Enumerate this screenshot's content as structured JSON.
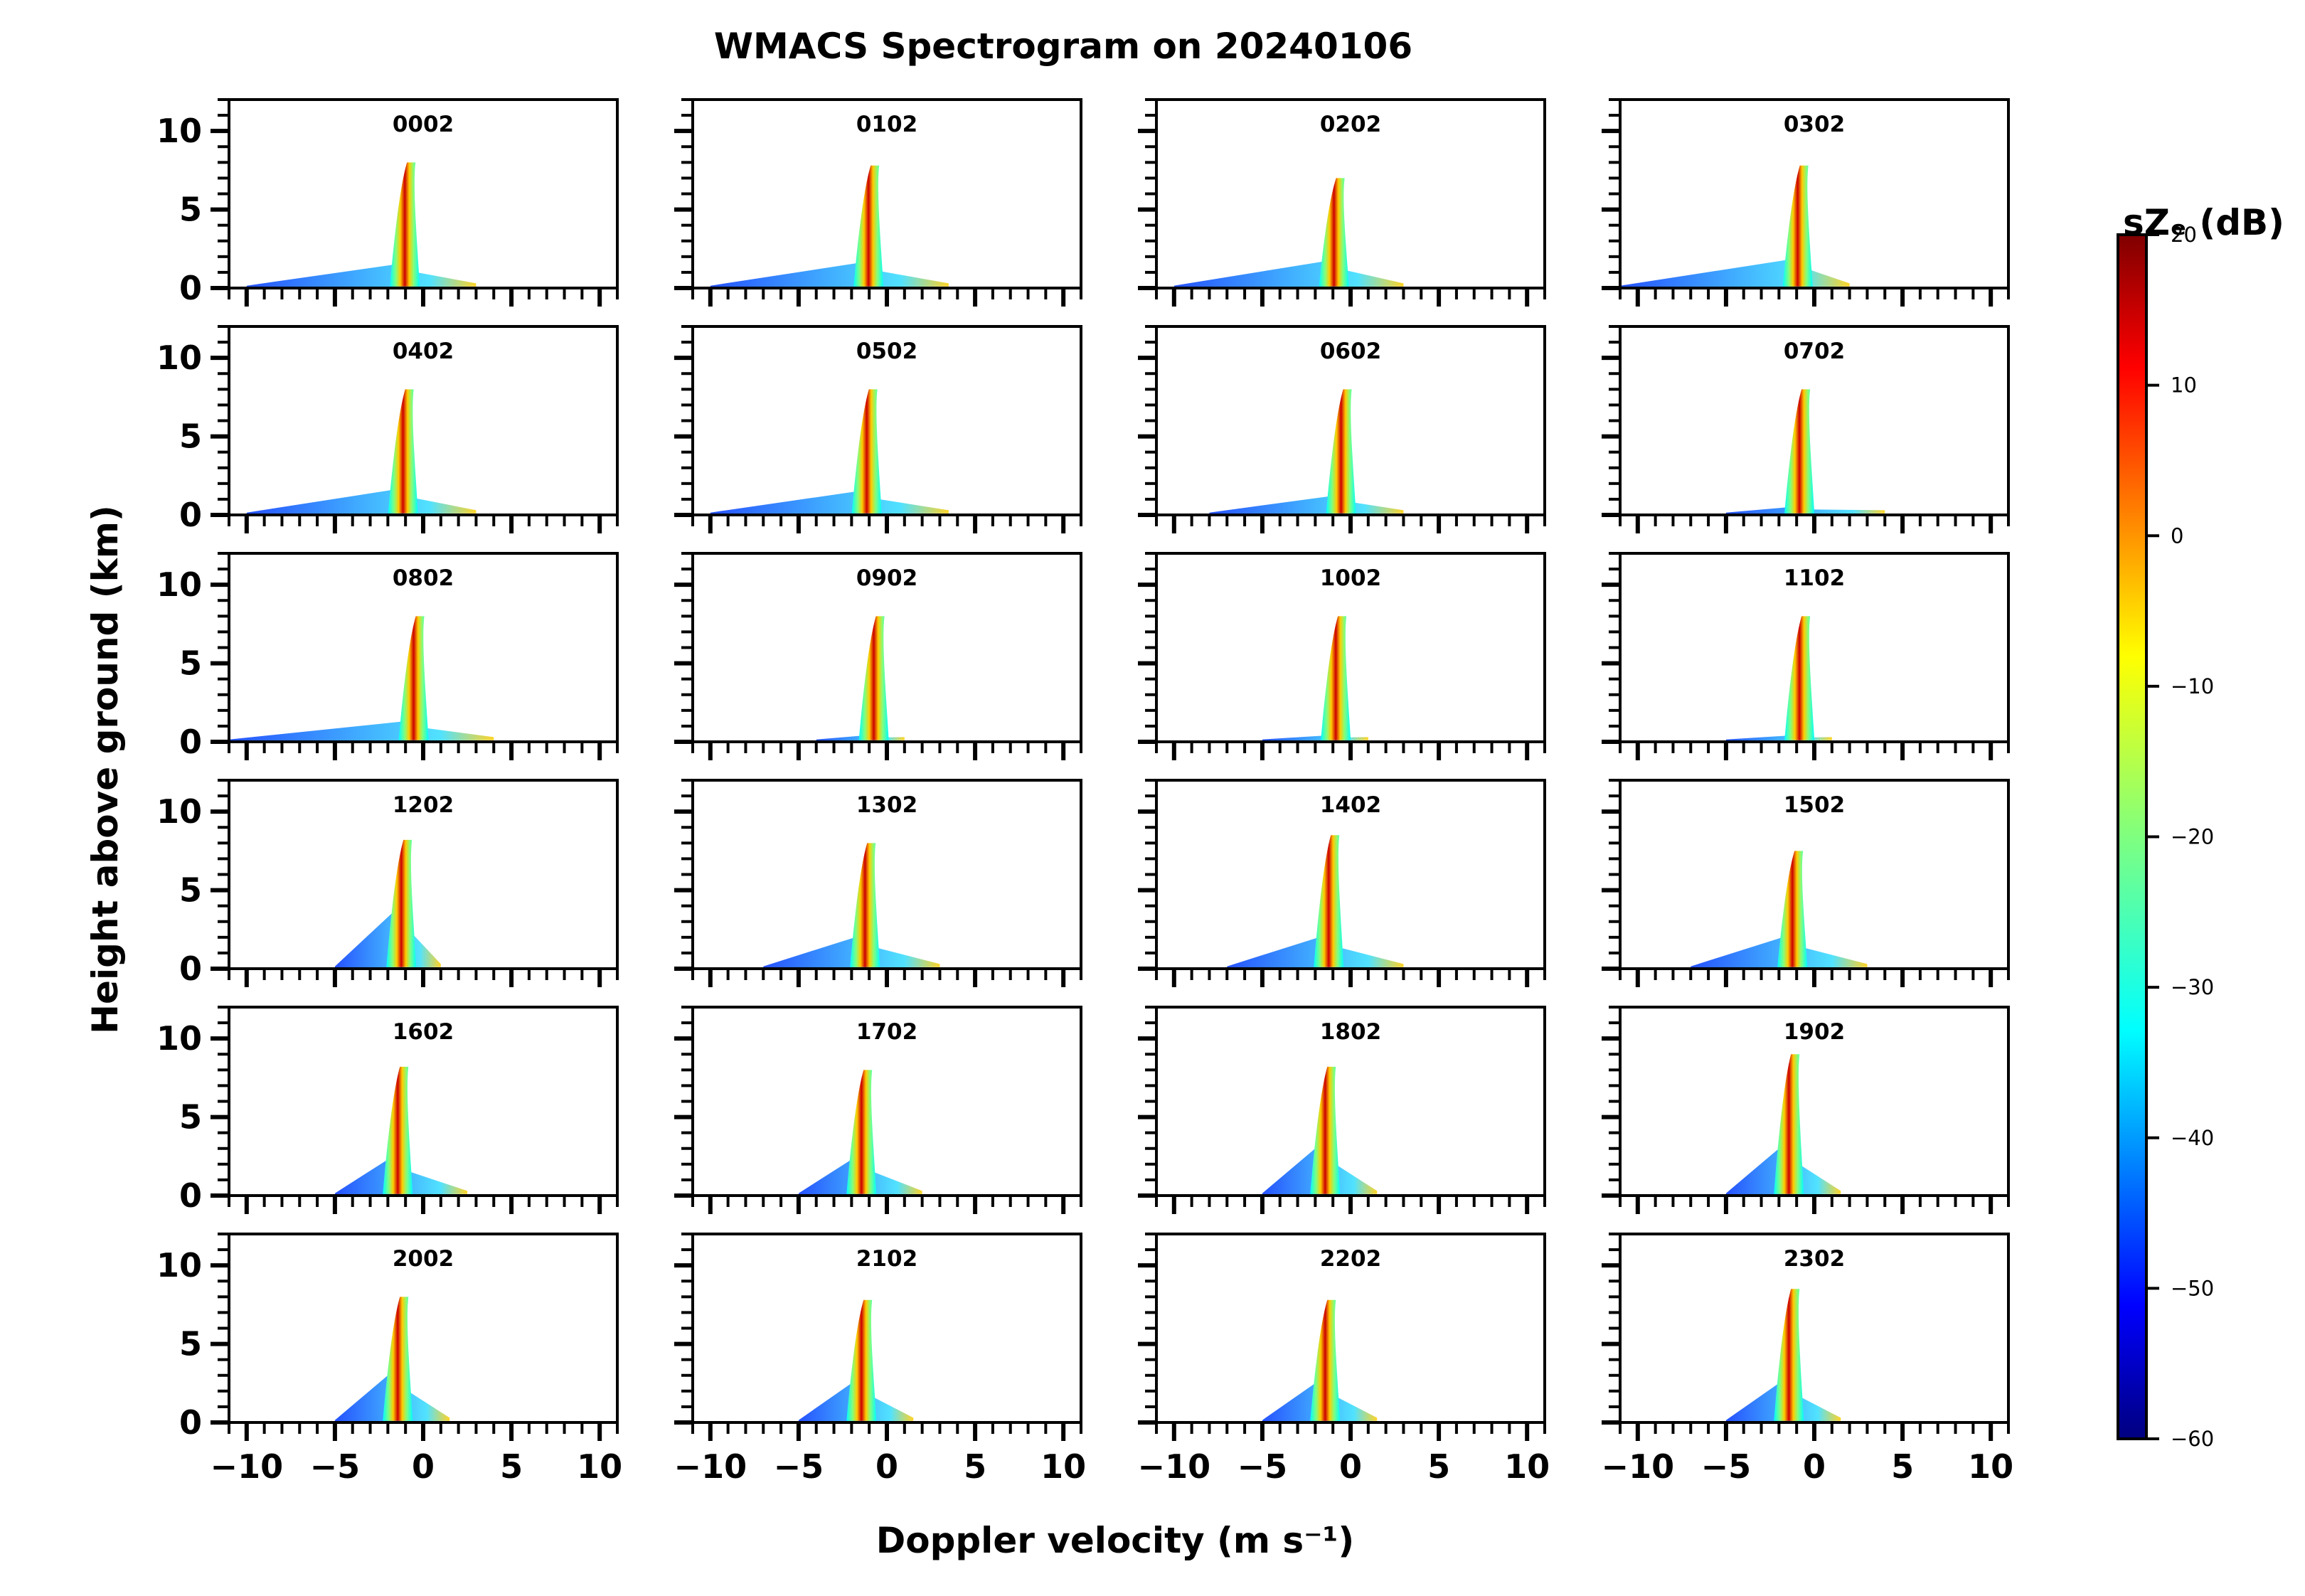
{
  "chart_data": {
    "type": "heatmap",
    "title": "WMACS Spectrogram on 20240106",
    "xlabel": "Doppler velocity (m s⁻¹)",
    "ylabel": "Height above ground (km)",
    "xlim": [
      -11,
      11
    ],
    "ylim": [
      0,
      12
    ],
    "xticks": [
      -10,
      -5,
      0,
      5,
      10
    ],
    "xtick_labels": [
      "−10",
      "−5",
      "0",
      "5",
      "10"
    ],
    "yticks": [
      0,
      5,
      10
    ],
    "ytick_labels": [
      "0",
      "5",
      "10"
    ],
    "grid": false,
    "colorbar": {
      "label": "sZₑ (dB)",
      "min": -60,
      "max": 20,
      "ticks": [
        20,
        10,
        0,
        -10,
        -20,
        -30,
        -40,
        -50,
        -60
      ],
      "tick_labels": [
        "20",
        "10",
        "0",
        "−10",
        "−20",
        "−30",
        "−40",
        "−50",
        "−60"
      ],
      "colormap": "jet"
    },
    "panels": [
      {
        "time": "0002",
        "top_km": 8.0,
        "center_ms": -1.0,
        "lower_left_ms": -10,
        "lower_right_ms": 3,
        "lower_top_km": 1.5
      },
      {
        "time": "0102",
        "top_km": 7.8,
        "center_ms": -1.0,
        "lower_left_ms": -10,
        "lower_right_ms": 3.5,
        "lower_top_km": 1.6
      },
      {
        "time": "0202",
        "top_km": 7.0,
        "center_ms": -0.9,
        "lower_left_ms": -10,
        "lower_right_ms": 3,
        "lower_top_km": 1.7
      },
      {
        "time": "0302",
        "top_km": 7.8,
        "center_ms": -0.9,
        "lower_left_ms": -11,
        "lower_right_ms": 2,
        "lower_top_km": 1.8
      },
      {
        "time": "0402",
        "top_km": 8.0,
        "center_ms": -1.1,
        "lower_left_ms": -10,
        "lower_right_ms": 3,
        "lower_top_km": 1.6
      },
      {
        "time": "0502",
        "top_km": 8.0,
        "center_ms": -1.1,
        "lower_left_ms": -10,
        "lower_right_ms": 3.5,
        "lower_top_km": 1.5
      },
      {
        "time": "0602",
        "top_km": 8.0,
        "center_ms": -0.5,
        "lower_left_ms": -8,
        "lower_right_ms": 3,
        "lower_top_km": 1.2
      },
      {
        "time": "0702",
        "top_km": 8.0,
        "center_ms": -0.8,
        "lower_left_ms": -5,
        "lower_right_ms": 4,
        "lower_top_km": 0.5
      },
      {
        "time": "0802",
        "top_km": 8.0,
        "center_ms": -0.5,
        "lower_left_ms": -11,
        "lower_right_ms": 4,
        "lower_top_km": 1.3
      },
      {
        "time": "0902",
        "top_km": 8.0,
        "center_ms": -0.7,
        "lower_left_ms": -4,
        "lower_right_ms": 1,
        "lower_top_km": 0.4
      },
      {
        "time": "1002",
        "top_km": 8.0,
        "center_ms": -0.8,
        "lower_left_ms": -5,
        "lower_right_ms": 1,
        "lower_top_km": 0.4
      },
      {
        "time": "1102",
        "top_km": 8.0,
        "center_ms": -0.8,
        "lower_left_ms": -5,
        "lower_right_ms": 1,
        "lower_top_km": 0.4
      },
      {
        "time": "1202",
        "top_km": 8.2,
        "center_ms": -1.2,
        "lower_left_ms": -5,
        "lower_right_ms": 1,
        "lower_top_km": 3.5
      },
      {
        "time": "1302",
        "top_km": 8.0,
        "center_ms": -1.2,
        "lower_left_ms": -7,
        "lower_right_ms": 3,
        "lower_top_km": 2.0
      },
      {
        "time": "1402",
        "top_km": 8.5,
        "center_ms": -1.2,
        "lower_left_ms": -7,
        "lower_right_ms": 3,
        "lower_top_km": 2.0
      },
      {
        "time": "1502",
        "top_km": 7.5,
        "center_ms": -1.2,
        "lower_left_ms": -7,
        "lower_right_ms": 3,
        "lower_top_km": 2.0
      },
      {
        "time": "1602",
        "top_km": 8.2,
        "center_ms": -1.4,
        "lower_left_ms": -5,
        "lower_right_ms": 2.5,
        "lower_top_km": 2.3
      },
      {
        "time": "1702",
        "top_km": 8.0,
        "center_ms": -1.4,
        "lower_left_ms": -5,
        "lower_right_ms": 2,
        "lower_top_km": 2.3
      },
      {
        "time": "1802",
        "top_km": 8.2,
        "center_ms": -1.4,
        "lower_left_ms": -5,
        "lower_right_ms": 1.5,
        "lower_top_km": 3.0
      },
      {
        "time": "1902",
        "top_km": 9.0,
        "center_ms": -1.4,
        "lower_left_ms": -5,
        "lower_right_ms": 1.5,
        "lower_top_km": 3.0
      },
      {
        "time": "2002",
        "top_km": 8.0,
        "center_ms": -1.4,
        "lower_left_ms": -5,
        "lower_right_ms": 1.5,
        "lower_top_km": 3.0
      },
      {
        "time": "2102",
        "top_km": 7.8,
        "center_ms": -1.4,
        "lower_left_ms": -5,
        "lower_right_ms": 1.5,
        "lower_top_km": 2.5
      },
      {
        "time": "2202",
        "top_km": 7.8,
        "center_ms": -1.4,
        "lower_left_ms": -5,
        "lower_right_ms": 1.5,
        "lower_top_km": 2.5
      },
      {
        "time": "2302",
        "top_km": 8.5,
        "center_ms": -1.4,
        "lower_left_ms": -5,
        "lower_right_ms": 1.5,
        "lower_top_km": 2.5
      }
    ]
  }
}
